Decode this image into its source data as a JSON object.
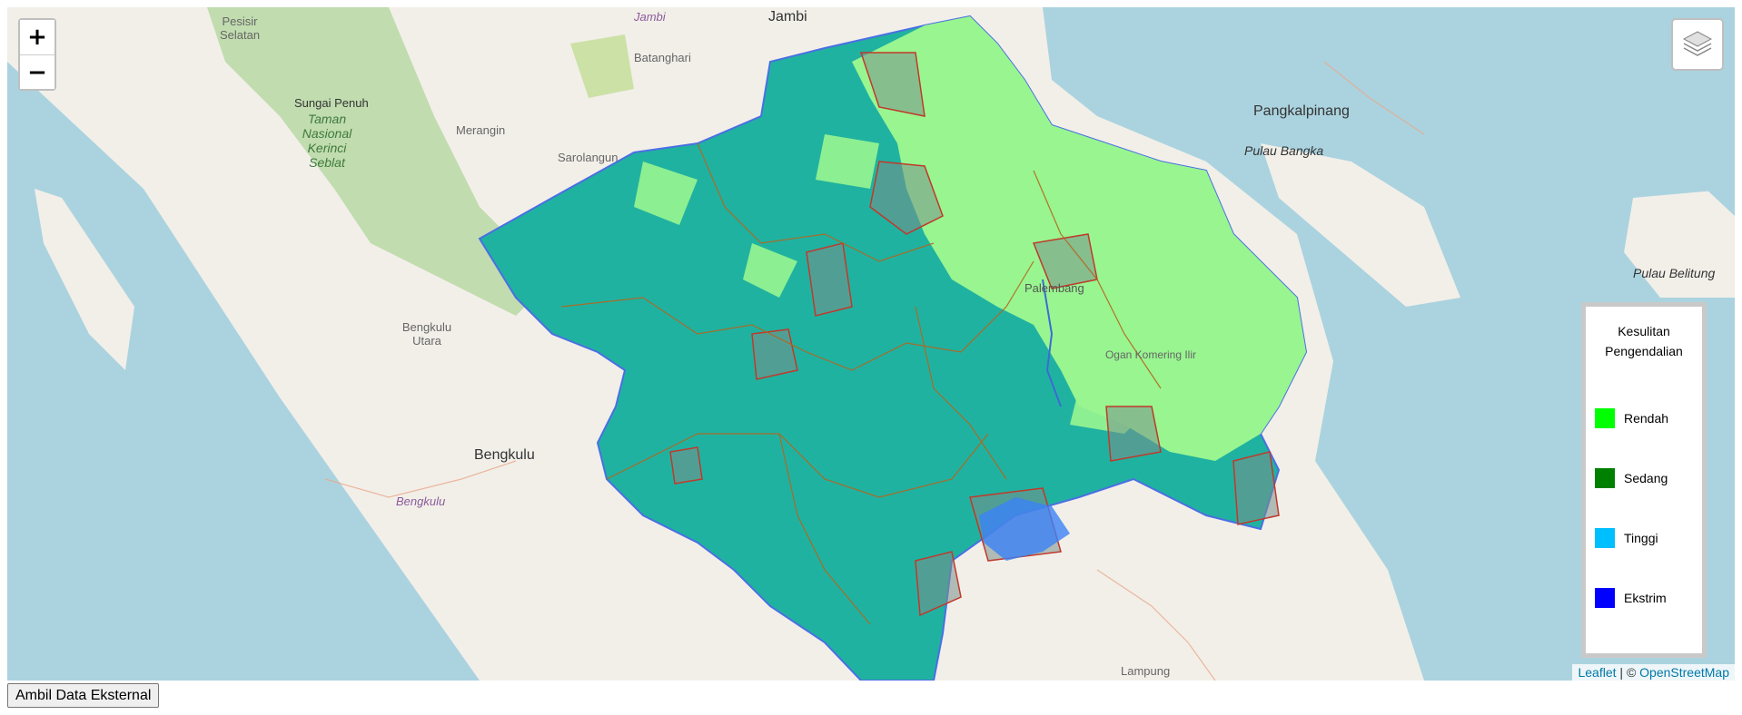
{
  "zoom": {
    "in_label": "+",
    "out_label": "−"
  },
  "map_labels": {
    "jambi_city": "Jambi",
    "jambi_prov": "Jambi",
    "pesisir_selatan": "Pesisir Selatan",
    "sungai_penuh": "Sungai Penuh",
    "taman_nasional": "Taman Nasional Kerinci Seblat",
    "merangin": "Merangin",
    "sarolangun": "Sarolangun",
    "batanghari": "Batanghari",
    "pangkalpinang": "Pangkalpinang",
    "pulau_bangka": "Pulau Bangka",
    "pulau_belitung": "Pulau Belitung",
    "bengkulu_utara": "Bengkulu Utara",
    "bengkulu_city": "Bengkulu",
    "bengkulu_prov": "Bengkulu",
    "ogan_komering": "Ogan Komering Ilir",
    "palembang": "Palembang",
    "lampung": "Lampung"
  },
  "legend": {
    "title": "Kesulitan Pengendalian",
    "items": [
      {
        "label": "Rendah",
        "color": "#00ff00"
      },
      {
        "label": "Sedang",
        "color": "#008000"
      },
      {
        "label": "Tinggi",
        "color": "#00bfff"
      },
      {
        "label": "Ekstrim",
        "color": "#0000ff"
      }
    ]
  },
  "attribution": {
    "leaflet": "Leaflet",
    "separator": " | © ",
    "osm": "OpenStreetMap"
  },
  "external_button": "Ambil Data Eksternal",
  "colors": {
    "sea": "#abd3df",
    "land": "#f2efe9",
    "high_risk_teal": "#20b2a0",
    "low_risk_green": "#98f590",
    "boundary": "#c0392b"
  }
}
